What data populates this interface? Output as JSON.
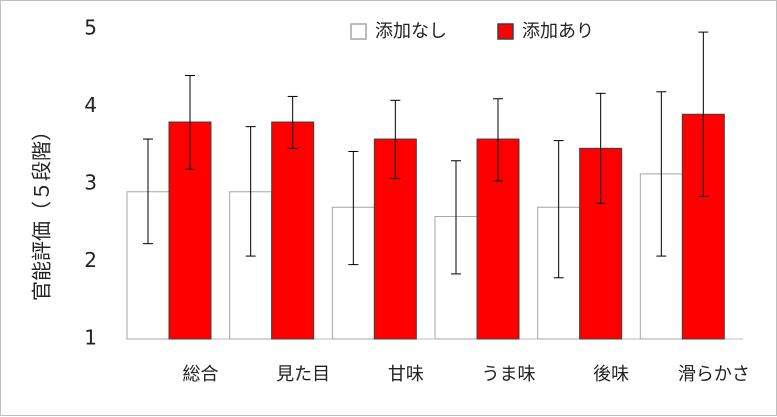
{
  "chart_data": {
    "type": "bar",
    "ylabel": "官能評価（５段階）",
    "ylim": [
      1,
      5
    ],
    "yticks": [
      1,
      2,
      3,
      4,
      5
    ],
    "categories": [
      "総合",
      "見た目",
      "甘味",
      "うま味",
      "後味",
      "滑らかさ"
    ],
    "series": [
      {
        "name": "添加なし",
        "color": "#ffffff",
        "stroke": "#a6a6a6",
        "values": [
          2.9,
          2.9,
          2.7,
          2.58,
          2.7,
          3.13
        ],
        "err_low": [
          2.23,
          2.07,
          1.96,
          1.84,
          1.79,
          2.07
        ],
        "err_high": [
          3.58,
          3.74,
          3.42,
          3.3,
          3.56,
          4.19
        ]
      },
      {
        "name": "添加あり",
        "color": "#ff0000",
        "stroke": "#404040",
        "values": [
          3.8,
          3.8,
          3.58,
          3.58,
          3.46,
          3.9
        ],
        "err_low": [
          3.19,
          3.46,
          3.07,
          3.04,
          2.75,
          2.84
        ],
        "err_high": [
          4.4,
          4.13,
          4.08,
          4.1,
          4.17,
          4.96
        ]
      }
    ],
    "legend_position": "top"
  }
}
